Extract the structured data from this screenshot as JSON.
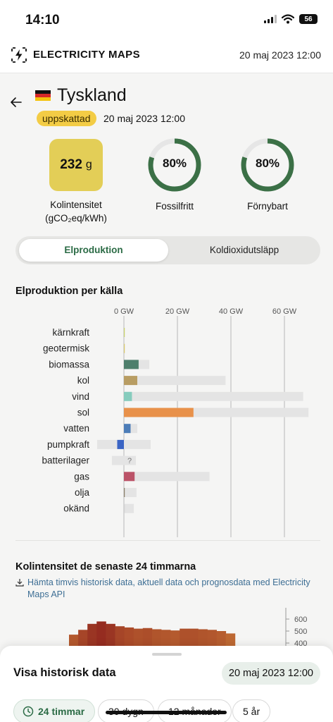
{
  "status_bar": {
    "time": "14:10",
    "battery": "56"
  },
  "header": {
    "app_name": "ELECTRICITY MAPS",
    "date": "20 maj 2023 12:00"
  },
  "zone": {
    "name": "Tyskland",
    "badge": "uppskattad",
    "date": "20 maj 2023 12:00"
  },
  "metrics": {
    "carbon_intensity": {
      "value": "232",
      "unit": "g",
      "label_line1": "Kolintensitet",
      "label_line2": "(gCO₂eq/kWh)"
    },
    "fossil_free": {
      "value": "80%",
      "fraction": 0.8,
      "label": "Fossilfritt"
    },
    "renewable": {
      "value": "80%",
      "fraction": 0.8,
      "label": "Förnybart"
    }
  },
  "toggle": {
    "active": "Elproduktion",
    "other": "Koldioxidutsläpp"
  },
  "production_title": "Elproduktion per källa",
  "chart_data": {
    "type": "bar",
    "title": "Elproduktion per källa",
    "xlabel": "",
    "ylabel": "",
    "x_ticks": [
      "0 GW",
      "20 GW",
      "40 GW",
      "60 GW"
    ],
    "xlim": [
      -10,
      70
    ],
    "unit": "GW",
    "categories": [
      "kärnkraft",
      "geotermisk",
      "biomassa",
      "kol",
      "vind",
      "sol",
      "vatten",
      "pumpkraft",
      "batterilager",
      "gas",
      "olja",
      "okänd"
    ],
    "series": [
      {
        "values": [
          0,
          0,
          5.5,
          5,
          3,
          26,
          2.5,
          -2.5,
          0,
          4,
          0.3,
          0
        ]
      },
      {
        "values": [
          0,
          0,
          9.5,
          38,
          67,
          69,
          5,
          10,
          4.5,
          32,
          4.7,
          3.7
        ]
      }
    ],
    "capacity_min": [
      0,
      0,
      0,
      0,
      0,
      0,
      0,
      -10,
      -4.5,
      0,
      0,
      0
    ],
    "colors": [
      "#c8d26a",
      "#d8c86a",
      "#4e7f6c",
      "#b89d63",
      "#86ccbd",
      "#e8914a",
      "#4d7db8",
      "#3a64c4",
      "#cccccc",
      "#bb5368",
      "#8a7f68",
      "#d2d2d2"
    ],
    "unknown_marker": "?"
  },
  "carbon_history": {
    "title": "Kolintensitet de senaste 24 timmarna",
    "api_link": "Hämta timvis historisk data, aktuell data och prognosdata med Electricity Maps API",
    "chart_data": {
      "type": "bar",
      "y_ticks": [
        "600",
        "500",
        "400"
      ],
      "ylim": [
        300,
        650
      ],
      "values": [
        470,
        510,
        560,
        580,
        560,
        540,
        530,
        520,
        525,
        515,
        510,
        505,
        520,
        520,
        515,
        510,
        500,
        480
      ],
      "colors": [
        "#b3582d",
        "#a64528",
        "#9a3523",
        "#952c20",
        "#9a3523",
        "#a64528",
        "#ab4b29",
        "#ae512b",
        "#ac4e2a",
        "#b0552c",
        "#b2572d",
        "#b45a2e",
        "#ae512b",
        "#ae512b",
        "#b0552c",
        "#b2572d",
        "#b65d2f",
        "#bd6832"
      ]
    }
  },
  "sheet": {
    "title": "Visa historisk data",
    "date": "20 maj 2023 12:00",
    "ranges": [
      "24 timmar",
      "30 dygn",
      "12 månader",
      "5 år"
    ]
  }
}
